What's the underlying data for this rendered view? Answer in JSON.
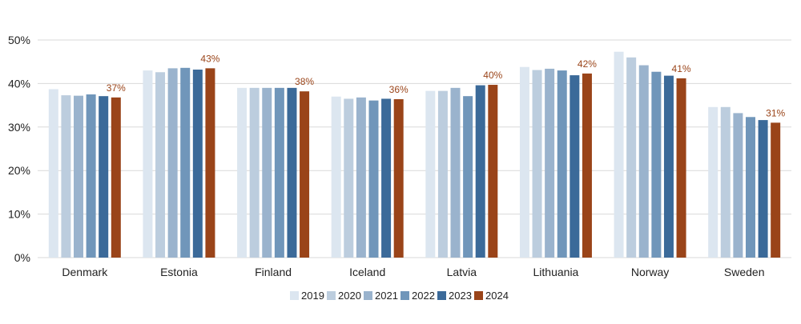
{
  "chart_data": {
    "type": "bar",
    "categories": [
      "Denmark",
      "Estonia",
      "Finland",
      "Iceland",
      "Latvia",
      "Lithuania",
      "Norway",
      "Sweden"
    ],
    "series": [
      {
        "name": "2019",
        "color": "#dce6f0",
        "values": [
          38.7,
          43.0,
          39.0,
          37.0,
          38.3,
          43.8,
          47.3,
          34.6
        ]
      },
      {
        "name": "2020",
        "color": "#bccdde",
        "values": [
          37.3,
          42.6,
          39.0,
          36.5,
          38.3,
          43.1,
          46.0,
          34.6
        ]
      },
      {
        "name": "2021",
        "color": "#9ab3cd",
        "values": [
          37.2,
          43.5,
          39.0,
          36.8,
          39.0,
          43.4,
          44.2,
          33.2
        ]
      },
      {
        "name": "2022",
        "color": "#7096ba",
        "values": [
          37.5,
          43.6,
          39.0,
          36.1,
          37.1,
          43.0,
          42.7,
          32.3
        ]
      },
      {
        "name": "2023",
        "color": "#3b6a99",
        "values": [
          37.1,
          43.2,
          39.0,
          36.5,
          39.6,
          41.9,
          41.8,
          31.6
        ]
      },
      {
        "name": "2024",
        "color": "#9a4419",
        "values": [
          36.8,
          43.5,
          38.2,
          36.4,
          39.7,
          42.3,
          41.2,
          31.0
        ]
      }
    ],
    "data_labels": [
      "37%",
      "43%",
      "38%",
      "36%",
      "40%",
      "42%",
      "41%",
      "31%"
    ],
    "data_label_series": "2024",
    "data_label_color": "#9a4419",
    "y_ticks": [
      0,
      10,
      20,
      30,
      40,
      50
    ],
    "y_tick_labels": [
      "0%",
      "10%",
      "20%",
      "30%",
      "40%",
      "50%"
    ],
    "ylim": [
      0,
      50
    ],
    "grid": true,
    "grid_color": "#d9d9d9",
    "legend_position": "bottom",
    "title": "",
    "xlabel": "",
    "ylabel": ""
  }
}
